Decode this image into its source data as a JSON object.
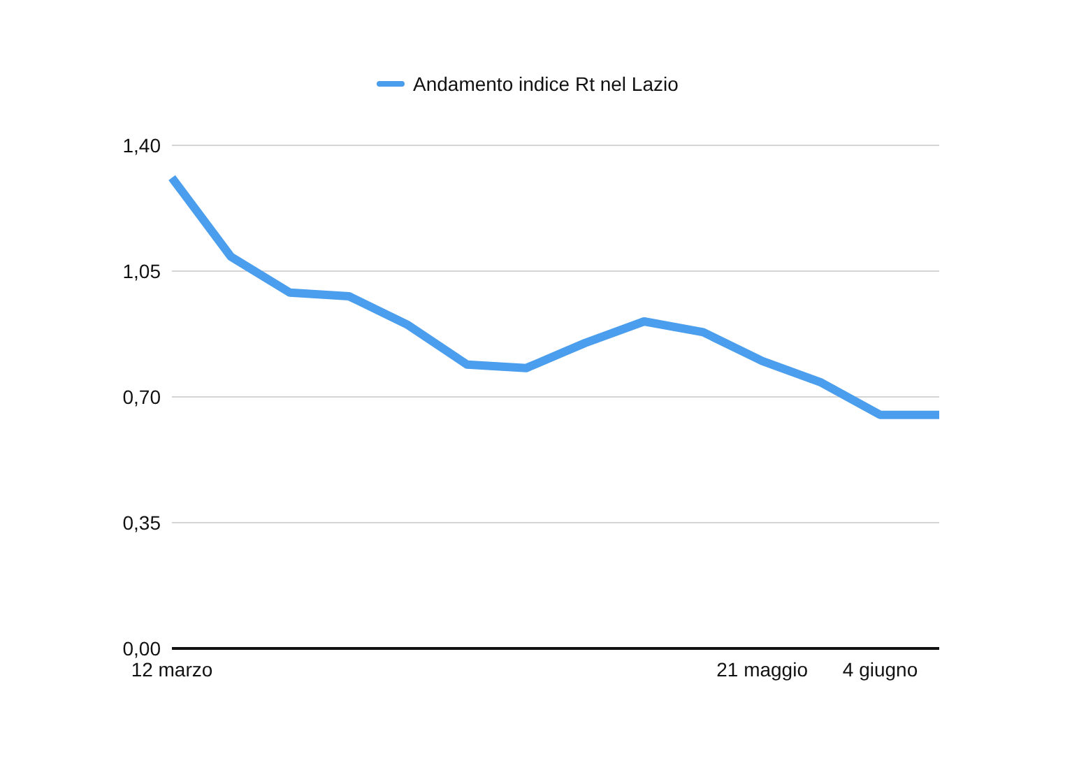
{
  "chart_data": {
    "type": "line",
    "categories": [
      "12 marzo",
      null,
      null,
      null,
      null,
      null,
      null,
      null,
      null,
      null,
      "21 maggio",
      null,
      "4 giugno",
      null
    ],
    "series": [
      {
        "name": "Andamento indice Rt nel Lazio",
        "color": "#4a9eed",
        "values": [
          1.31,
          1.09,
          0.99,
          0.98,
          0.9,
          0.79,
          0.78,
          0.85,
          0.91,
          0.88,
          0.8,
          0.74,
          0.65,
          0.65
        ]
      }
    ],
    "ylim": [
      0,
      1.4
    ],
    "yticks": [
      {
        "value": 0,
        "label": "0,00"
      },
      {
        "value": 0.35,
        "label": "0,35"
      },
      {
        "value": 0.7,
        "label": "0,70"
      },
      {
        "value": 1.05,
        "label": "1,05"
      },
      {
        "value": 1.4,
        "label": "1,40"
      }
    ],
    "grid": "y",
    "legend": "top",
    "marker": "none",
    "line_style": "solid"
  }
}
